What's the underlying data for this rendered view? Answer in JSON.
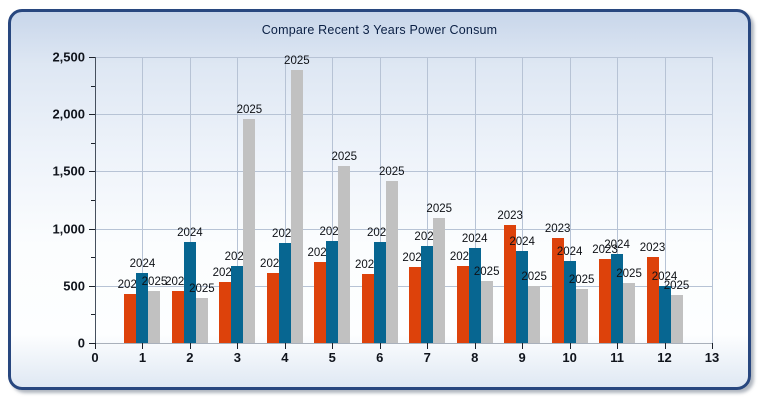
{
  "window": {
    "frame_border_color": "#28477f",
    "shadow_color": "#969eaa",
    "background_top": "#c8d6ea",
    "background_bottom": "#dfe8f3"
  },
  "chart_data": {
    "type": "bar",
    "title": "Compare Recent 3 Years Power Consum",
    "title_color": "#0a1f44",
    "xlabel": "",
    "ylabel": "",
    "xlim": [
      0,
      13
    ],
    "ylim": [
      0,
      2500
    ],
    "grid": true,
    "grid_color": "#b7c3d5",
    "legend_position": "none",
    "bar_value_labels": "series name above each bar",
    "categories": [
      1,
      2,
      3,
      4,
      5,
      6,
      7,
      8,
      9,
      10,
      11,
      12
    ],
    "x_ticks": [
      "0",
      "1",
      "2",
      "3",
      "4",
      "5",
      "6",
      "7",
      "8",
      "9",
      "10",
      "11",
      "12",
      "13"
    ],
    "y_ticks": [
      {
        "value": 0,
        "label": "0"
      },
      {
        "value": 500,
        "label": "500"
      },
      {
        "value": 1000,
        "label": "1,000"
      },
      {
        "value": 1500,
        "label": "1,500"
      },
      {
        "value": 2000,
        "label": "2,000"
      },
      {
        "value": 2500,
        "label": "2,500"
      }
    ],
    "series": [
      {
        "name": "2023",
        "color": "#dd420b",
        "values": [
          430,
          455,
          535,
          615,
          705,
          600,
          660,
          670,
          1030,
          920,
          730,
          755
        ]
      },
      {
        "name": "2024",
        "color": "#076691",
        "values": [
          610,
          885,
          675,
          870,
          895,
          885,
          850,
          830,
          800,
          720,
          775,
          500
        ]
      },
      {
        "name": "2025",
        "color": "#c1c1c1",
        "values": [
          455,
          395,
          1955,
          2390,
          1545,
          1415,
          1090,
          540,
          500,
          470,
          525,
          420
        ]
      }
    ]
  }
}
